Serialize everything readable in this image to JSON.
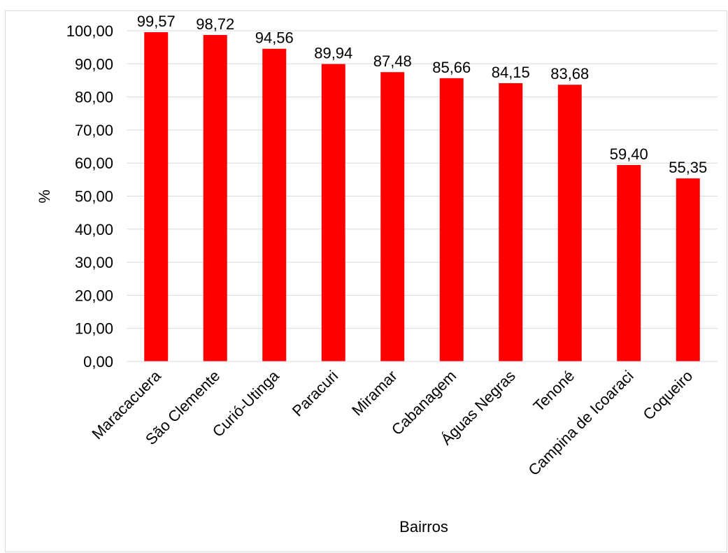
{
  "chart_data": {
    "type": "bar",
    "categories": [
      "Maracacuera",
      "São Clemente",
      "Curió-Utinga",
      "Paracuri",
      "Miramar",
      "Cabanagem",
      "Águas Negras",
      "Tenoné",
      "Campina de Icoaraci",
      "Coqueiro"
    ],
    "values": [
      99.57,
      98.72,
      94.56,
      89.94,
      87.48,
      85.66,
      84.15,
      83.68,
      59.4,
      55.35
    ],
    "data_labels": [
      "99,57",
      "98,72",
      "94,56",
      "89,94",
      "87,48",
      "85,66",
      "84,15",
      "83,68",
      "59,40",
      "55,35"
    ],
    "y_ticks": [
      "0,00",
      "10,00",
      "20,00",
      "30,00",
      "40,00",
      "50,00",
      "60,00",
      "70,00",
      "80,00",
      "90,00",
      "100,00"
    ],
    "xlabel": "Bairros",
    "ylabel": "%",
    "ylim": [
      0,
      100
    ],
    "grid": true,
    "legend": "none",
    "bar_color": "#ff0000",
    "grid_color": "#d9d9d9"
  }
}
